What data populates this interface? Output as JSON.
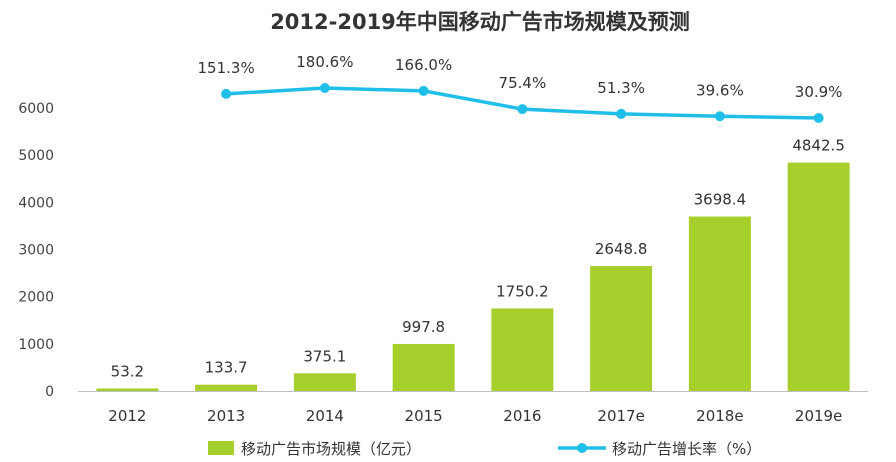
{
  "chart_data": {
    "type": "bar",
    "title": "2012-2019年中国移动广告市场规模及预测",
    "categories": [
      "2012",
      "2013",
      "2014",
      "2015",
      "2016",
      "2017e",
      "2018e",
      "2019e"
    ],
    "series": [
      {
        "name": "移动广告市场规模（亿元）",
        "type": "bar",
        "values": [
          53.2,
          133.7,
          375.1,
          997.8,
          1750.2,
          2648.8,
          3698.4,
          4842.5
        ],
        "labels": [
          "53.2",
          "133.7",
          "375.1",
          "997.8",
          "1750.2",
          "2648.8",
          "3698.4",
          "4842.5"
        ],
        "color": "#a6cf2c"
      },
      {
        "name": "移动广告增长率（%）",
        "type": "line",
        "values": [
          null,
          151.3,
          180.6,
          166.0,
          75.4,
          51.3,
          39.6,
          30.9
        ],
        "labels": [
          "",
          "151.3%",
          "180.6%",
          "166.0%",
          "75.4%",
          "51.3%",
          "39.6%",
          "30.9%"
        ],
        "color": "#1fbfea"
      }
    ],
    "y_ticks": [
      "0",
      "1000",
      "2000",
      "3000",
      "4000",
      "5000",
      "6000"
    ],
    "ylim": [
      0,
      6000
    ],
    "grid": false,
    "legend_position": "bottom"
  }
}
